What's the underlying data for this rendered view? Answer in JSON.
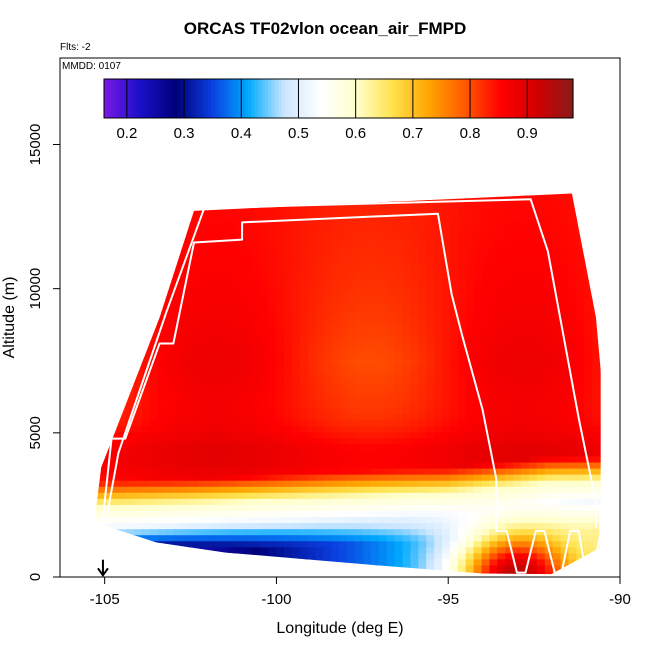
{
  "figure": {
    "title": "ORCAS TF02vlon ocean_air_FMPD",
    "flts_note": "Flts: -2",
    "date_note": "MMDD: 0107"
  },
  "chart_data": {
    "type": "heatmap",
    "title": "ORCAS TF02vlon ocean_air_FMPD",
    "xlabel": "Longitude (deg E)",
    "ylabel": "Altitude (m)",
    "xlim": [
      -106.3,
      -90
    ],
    "ylim": [
      0,
      18000
    ],
    "xticks": [
      -105,
      -100,
      -95,
      -90
    ],
    "yticks": [
      0,
      5000,
      10000,
      15000
    ],
    "colorbar": {
      "range": [
        0.16,
        0.98
      ],
      "ticks": [
        0.2,
        0.3,
        0.4,
        0.5,
        0.6,
        0.7,
        0.8,
        0.9
      ],
      "colors": [
        "#7b19e6",
        "#1a10c8",
        "#00007a",
        "#0a3fe0",
        "#00aaff",
        "#cce6ff",
        "#ffffff",
        "#ffffcc",
        "#ffe24d",
        "#ffa500",
        "#ff5a00",
        "#ff0000",
        "#d20000",
        "#8b1a1a"
      ]
    },
    "field": {
      "x_range": [
        -105.3,
        -90.6
      ],
      "inversion_altitude_m": 2500,
      "inversion_longitude_shift": [
        [
          -105.3,
          0
        ],
        [
          -95,
          500
        ],
        [
          -92,
          900
        ]
      ],
      "upper_value": 0.84,
      "lower_clean_value": 0.2,
      "surface_plume": {
        "longitude": -93.0,
        "value": 0.95
      }
    },
    "domain_outline": {
      "top": [
        [
          -105.1,
          3800
        ],
        [
          -103.4,
          9000
        ],
        [
          -102.4,
          12700
        ],
        [
          -91.4,
          13300
        ],
        [
          -90.7,
          9000
        ],
        [
          -90.4,
          5000
        ],
        [
          -90.6,
          2000
        ]
      ],
      "bottom": [
        [
          -105.3,
          1900
        ],
        [
          -103.5,
          1200
        ],
        [
          -101.5,
          850
        ],
        [
          -99.5,
          650
        ],
        [
          -97.0,
          400
        ],
        [
          -94.0,
          120
        ],
        [
          -92.0,
          100
        ],
        [
          -90.6,
          1000
        ]
      ]
    },
    "flight_tracks": [
      {
        "name": "track-1",
        "points": [
          [
            -105.1,
            1500
          ],
          [
            -104.8,
            4800
          ],
          [
            -104.4,
            4800
          ],
          [
            -103.4,
            8100
          ],
          [
            -103.0,
            8100
          ],
          [
            -102.4,
            11600
          ],
          [
            -101.0,
            11700
          ],
          [
            -101.0,
            12300
          ],
          [
            -95.3,
            12600
          ],
          [
            -94.9,
            9800
          ],
          [
            -94.6,
            8400
          ],
          [
            -94.0,
            5800
          ],
          [
            -93.6,
            3400
          ],
          [
            -93.6,
            1600
          ]
        ]
      },
      {
        "name": "track-2",
        "points": [
          [
            -105.0,
            1700
          ],
          [
            -104.6,
            4300
          ],
          [
            -103.2,
            9200
          ],
          [
            -102.1,
            12800
          ],
          [
            -92.6,
            13100
          ],
          [
            -92.1,
            11300
          ],
          [
            -91.2,
            5500
          ],
          [
            -90.7,
            2600
          ],
          [
            -90.7,
            1700
          ]
        ]
      },
      {
        "name": "surface-sawtooth",
        "points": [
          [
            -93.6,
            1600
          ],
          [
            -93.3,
            1600
          ],
          [
            -93.0,
            150
          ],
          [
            -92.75,
            150
          ],
          [
            -92.45,
            1600
          ],
          [
            -92.2,
            1600
          ],
          [
            -91.9,
            150
          ],
          [
            -91.7,
            150
          ],
          [
            -91.45,
            1600
          ],
          [
            -91.2,
            1600
          ],
          [
            -91.0,
            150
          ],
          [
            -90.8,
            150
          ],
          [
            -90.55,
            1600
          ]
        ]
      }
    ],
    "marker": {
      "type": "arrow-down",
      "longitude": -105.05,
      "from_altitude": 600,
      "to_altitude": 60
    }
  }
}
